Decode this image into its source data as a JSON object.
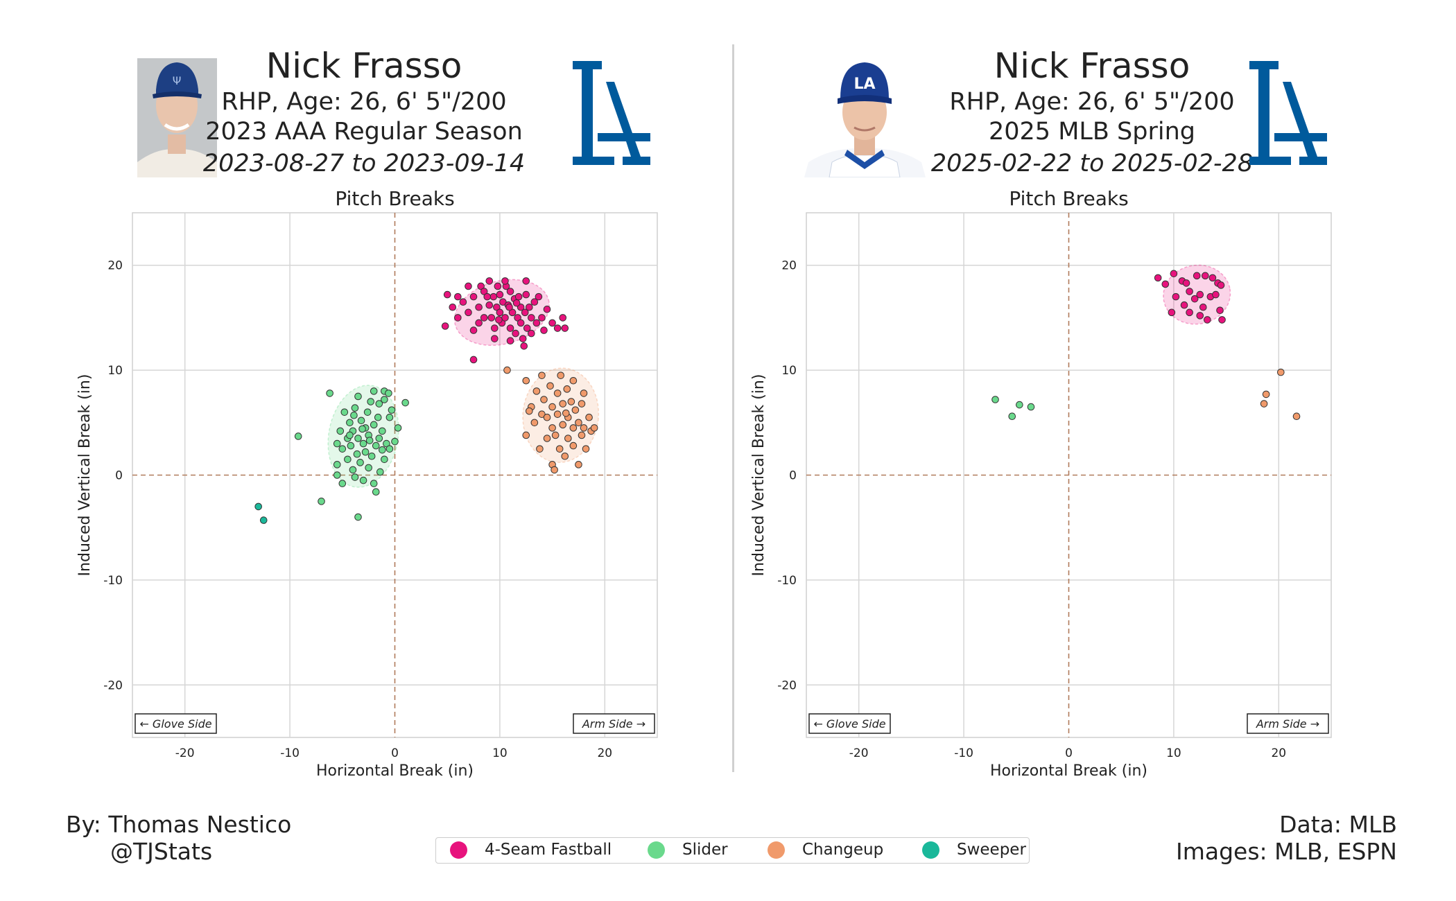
{
  "panels": [
    {
      "name": "Nick Frasso",
      "bio": "RHP, Age: 26, 6' 5\"/200",
      "season": "2023 AAA Regular Season",
      "dates": "2023-08-27 to 2023-09-14",
      "plot_title": "Pitch Breaks"
    },
    {
      "name": "Nick Frasso",
      "bio": "RHP, Age: 26, 6' 5\"/200",
      "season": "2025 MLB Spring",
      "dates": "2025-02-22 to 2025-02-28",
      "plot_title": "Pitch Breaks"
    }
  ],
  "footer": {
    "by": "By: Thomas Nestico",
    "handle": "@TJStats",
    "data_source": "Data: MLB",
    "images_source": "Images: MLB, ESPN"
  },
  "legend": [
    {
      "label": "4-Seam Fastball",
      "color": "#e7137d"
    },
    {
      "label": "Slider",
      "color": "#6ad98c"
    },
    {
      "label": "Changeup",
      "color": "#f09a6b"
    },
    {
      "label": "Sweeper",
      "color": "#1ab89a"
    }
  ],
  "colors": {
    "logo_blue": "#005a9c",
    "zero_line": "#b07a5a",
    "grid": "#d6d6d6"
  },
  "chart_data": [
    {
      "type": "scatter",
      "title": "Pitch Breaks",
      "xlabel": "Horizontal Break (in)",
      "ylabel": "Induced Vertical Break (in)",
      "xlim": [
        -25,
        25
      ],
      "ylim": [
        -25,
        25
      ],
      "xticks": [
        -20,
        -10,
        0,
        10,
        20
      ],
      "yticks": [
        -20,
        -10,
        0,
        10,
        20
      ],
      "annotations": [
        "← Glove Side",
        "Arm Side →"
      ],
      "grid": true,
      "series": [
        {
          "name": "4-Seam Fastball",
          "color": "#e7137d",
          "ellipse": {
            "cx": 10.2,
            "cy": 15.5,
            "rx": 4.6,
            "ry": 3.0,
            "angle": -15
          },
          "points": [
            [
              5,
              17.2
            ],
            [
              5.5,
              16
            ],
            [
              6,
              17
            ],
            [
              6.5,
              16.5
            ],
            [
              7,
              18
            ],
            [
              7,
              15.5
            ],
            [
              7.5,
              17
            ],
            [
              8,
              16
            ],
            [
              8,
              14.5
            ],
            [
              8.2,
              18
            ],
            [
              8.5,
              15
            ],
            [
              8.5,
              17.5
            ],
            [
              9,
              16.2
            ],
            [
              9,
              18.5
            ],
            [
              9.2,
              15
            ],
            [
              9.4,
              17
            ],
            [
              9.5,
              14
            ],
            [
              9.7,
              16
            ],
            [
              9.8,
              18
            ],
            [
              10,
              15.5
            ],
            [
              10,
              17.2
            ],
            [
              10.2,
              14.5
            ],
            [
              10.3,
              16.5
            ],
            [
              10.5,
              15
            ],
            [
              10.6,
              18
            ],
            [
              10.8,
              16.2
            ],
            [
              11,
              14
            ],
            [
              11,
              17.5
            ],
            [
              11.2,
              15.5
            ],
            [
              11.4,
              16.8
            ],
            [
              11.5,
              13.5
            ],
            [
              11.7,
              15
            ],
            [
              11.8,
              17
            ],
            [
              12,
              14.5
            ],
            [
              12,
              16
            ],
            [
              12.2,
              13
            ],
            [
              12.4,
              15.5
            ],
            [
              12.5,
              17.2
            ],
            [
              12.6,
              14
            ],
            [
              12.8,
              16
            ],
            [
              13,
              15
            ],
            [
              13,
              13.5
            ],
            [
              13.3,
              16.5
            ],
            [
              13.5,
              14.5
            ],
            [
              13.7,
              17
            ],
            [
              14,
              15
            ],
            [
              14.2,
              13.8
            ],
            [
              14.5,
              15.8
            ],
            [
              15,
              14.5
            ],
            [
              15.5,
              14
            ],
            [
              16,
              15
            ],
            [
              16.2,
              14
            ],
            [
              6,
              15
            ],
            [
              4.8,
              14.2
            ],
            [
              7.5,
              13.8
            ],
            [
              12.5,
              18.5
            ],
            [
              7.5,
              11
            ],
            [
              10.5,
              18.5
            ],
            [
              9.5,
              13
            ],
            [
              11,
              12.8
            ],
            [
              12.3,
              12.3
            ],
            [
              8.8,
              17
            ],
            [
              10.9,
              16
            ],
            [
              11.6,
              16.4
            ],
            [
              9.9,
              14.8
            ]
          ]
        },
        {
          "name": "Slider",
          "color": "#6ad98c",
          "ellipse": {
            "cx": -3.0,
            "cy": 3.7,
            "rx": 3.3,
            "ry": 4.9,
            "angle": 10
          },
          "points": [
            [
              -9.2,
              3.7
            ],
            [
              -7,
              -2.5
            ],
            [
              -6.2,
              7.8
            ],
            [
              -5.5,
              1
            ],
            [
              -5.5,
              0
            ],
            [
              -5.5,
              3
            ],
            [
              -5.2,
              4.2
            ],
            [
              -5,
              2.5
            ],
            [
              -5,
              -0.8
            ],
            [
              -4.8,
              6
            ],
            [
              -4.5,
              3.5
            ],
            [
              -4.5,
              1.5
            ],
            [
              -4.3,
              5
            ],
            [
              -4.2,
              2.8
            ],
            [
              -4,
              0.5
            ],
            [
              -4,
              4.2
            ],
            [
              -3.8,
              6.4
            ],
            [
              -3.8,
              -0.2
            ],
            [
              -3.6,
              2
            ],
            [
              -3.5,
              -4
            ],
            [
              -3.5,
              3.5
            ],
            [
              -3.5,
              7.5
            ],
            [
              -3.3,
              1.2
            ],
            [
              -3.2,
              5.2
            ],
            [
              -3,
              3
            ],
            [
              -3,
              -0.5
            ],
            [
              -2.8,
              4.5
            ],
            [
              -2.8,
              2.2
            ],
            [
              -2.6,
              6
            ],
            [
              -2.5,
              0.7
            ],
            [
              -2.5,
              3.8
            ],
            [
              -2.3,
              7
            ],
            [
              -2.2,
              1.8
            ],
            [
              -2,
              4.8
            ],
            [
              -2,
              8
            ],
            [
              -2,
              -0.8
            ],
            [
              -1.8,
              2.8
            ],
            [
              -1.8,
              -1.6
            ],
            [
              -1.6,
              5.5
            ],
            [
              -1.5,
              3.5
            ],
            [
              -1.5,
              6.8
            ],
            [
              -1.4,
              0.3
            ],
            [
              -1.2,
              4.2
            ],
            [
              -1,
              1.5
            ],
            [
              -1,
              7.2
            ],
            [
              -0.8,
              3
            ],
            [
              -0.5,
              5.5
            ],
            [
              -0.5,
              2.5
            ],
            [
              -0.3,
              6.2
            ],
            [
              0,
              3.2
            ],
            [
              0.3,
              4.5
            ],
            [
              1,
              6.9
            ],
            [
              -1,
              8
            ],
            [
              -4.3,
              3.8
            ],
            [
              -3.1,
              4.4
            ],
            [
              -2.4,
              3.3
            ],
            [
              -0.6,
              7.8
            ],
            [
              -3.9,
              5.7
            ],
            [
              -1.2,
              2.4
            ]
          ]
        },
        {
          "name": "Changeup",
          "color": "#f09a6b",
          "ellipse": {
            "cx": 15.8,
            "cy": 5.7,
            "rx": 3.6,
            "ry": 4.5,
            "angle": 5
          },
          "points": [
            [
              10.7,
              10
            ],
            [
              12.5,
              9
            ],
            [
              12.5,
              3.8
            ],
            [
              13,
              6.5
            ],
            [
              13.3,
              5
            ],
            [
              13.5,
              8
            ],
            [
              13.8,
              2.5
            ],
            [
              14,
              5.8
            ],
            [
              14,
              9.5
            ],
            [
              14.2,
              7.2
            ],
            [
              14.5,
              3.5
            ],
            [
              14.5,
              5.5
            ],
            [
              14.8,
              8.5
            ],
            [
              15,
              1
            ],
            [
              15,
              4.5
            ],
            [
              15,
              6.5
            ],
            [
              15.2,
              0.5
            ],
            [
              15.3,
              3.8
            ],
            [
              15.5,
              7.8
            ],
            [
              15.5,
              5.8
            ],
            [
              15.7,
              2.5
            ],
            [
              15.8,
              9.5
            ],
            [
              16,
              4.8
            ],
            [
              16,
              6.8
            ],
            [
              16.2,
              1.8
            ],
            [
              16.4,
              8.2
            ],
            [
              16.5,
              3.5
            ],
            [
              16.5,
              5.5
            ],
            [
              16.8,
              7
            ],
            [
              17,
              2.8
            ],
            [
              17,
              4.5
            ],
            [
              17,
              9
            ],
            [
              17.2,
              6.2
            ],
            [
              17.5,
              1
            ],
            [
              17.5,
              5
            ],
            [
              17.8,
              3.8
            ],
            [
              17.8,
              6.8
            ],
            [
              18,
              4.5
            ],
            [
              18,
              7.8
            ],
            [
              18.2,
              2.5
            ],
            [
              18.5,
              5.5
            ],
            [
              18.7,
              4.2
            ],
            [
              19,
              4.5
            ],
            [
              12.8,
              6.1
            ],
            [
              16.3,
              5.9
            ]
          ]
        },
        {
          "name": "Sweeper",
          "color": "#1ab89a",
          "points": [
            [
              -13,
              -3
            ],
            [
              -12.5,
              -4.3
            ]
          ]
        }
      ]
    },
    {
      "type": "scatter",
      "title": "Pitch Breaks",
      "xlabel": "Horizontal Break (in)",
      "ylabel": "Induced Vertical Break (in)",
      "xlim": [
        -25,
        25
      ],
      "ylim": [
        -25,
        25
      ],
      "xticks": [
        -20,
        -10,
        0,
        10,
        20
      ],
      "yticks": [
        -20,
        -10,
        0,
        10,
        20
      ],
      "annotations": [
        "← Glove Side",
        "Arm Side →"
      ],
      "grid": true,
      "series": [
        {
          "name": "4-Seam Fastball",
          "color": "#e7137d",
          "ellipse": {
            "cx": 12.2,
            "cy": 17.2,
            "rx": 3.2,
            "ry": 2.8,
            "angle": -10
          },
          "points": [
            [
              8.5,
              18.8
            ],
            [
              9.2,
              18.2
            ],
            [
              9.8,
              15.5
            ],
            [
              10,
              19.2
            ],
            [
              10.2,
              17
            ],
            [
              10.8,
              18.5
            ],
            [
              11,
              16.2
            ],
            [
              11.2,
              18.3
            ],
            [
              11.5,
              17.5
            ],
            [
              11.5,
              15.5
            ],
            [
              12,
              16.8
            ],
            [
              12.2,
              19
            ],
            [
              12.5,
              15.2
            ],
            [
              12.5,
              17.2
            ],
            [
              12.8,
              16
            ],
            [
              13,
              19
            ],
            [
              13.2,
              14.8
            ],
            [
              13.5,
              17
            ],
            [
              13.7,
              18.8
            ],
            [
              14,
              17.2
            ],
            [
              14.2,
              18.3
            ],
            [
              14.4,
              15.7
            ],
            [
              14.6,
              14.8
            ],
            [
              14.5,
              18.1
            ]
          ]
        },
        {
          "name": "Slider",
          "color": "#6ad98c",
          "points": [
            [
              -7,
              7.2
            ],
            [
              -5.4,
              5.6
            ],
            [
              -4.7,
              6.7
            ],
            [
              -3.6,
              6.5
            ]
          ]
        },
        {
          "name": "Changeup",
          "color": "#f09a6b",
          "points": [
            [
              20.2,
              9.8
            ],
            [
              18.8,
              7.7
            ],
            [
              18.6,
              6.8
            ],
            [
              21.7,
              5.6
            ]
          ]
        }
      ]
    }
  ]
}
